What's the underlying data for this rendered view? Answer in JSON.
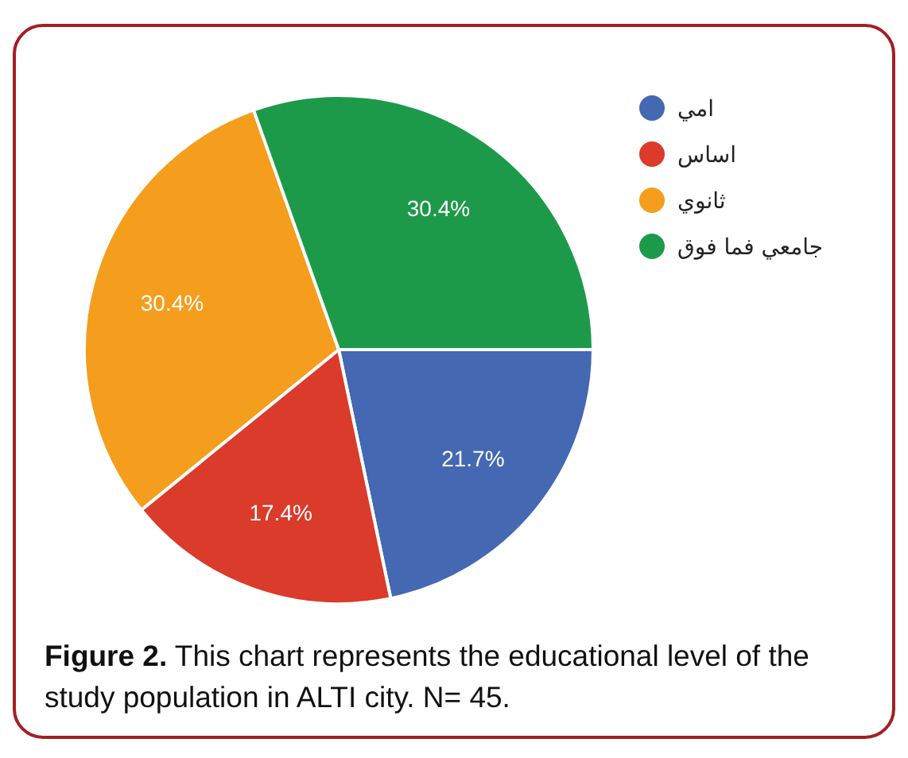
{
  "chart_data": {
    "type": "pie",
    "categories": [
      "امي",
      "اساس",
      "ثانوي",
      "جامعي فما فوق"
    ],
    "values": [
      21.7,
      17.4,
      30.4,
      30.4
    ],
    "colors": [
      "#4468b2",
      "#da3b2a",
      "#f59d1d",
      "#1c9a4a"
    ],
    "value_labels": [
      "21.7%",
      "17.4%",
      "30.4%",
      "30.4%"
    ],
    "legend": "top right",
    "annotations": [
      "Figure 2. This chart represents the educational level of the study population in ALTI city. N= 45."
    ]
  }
}
